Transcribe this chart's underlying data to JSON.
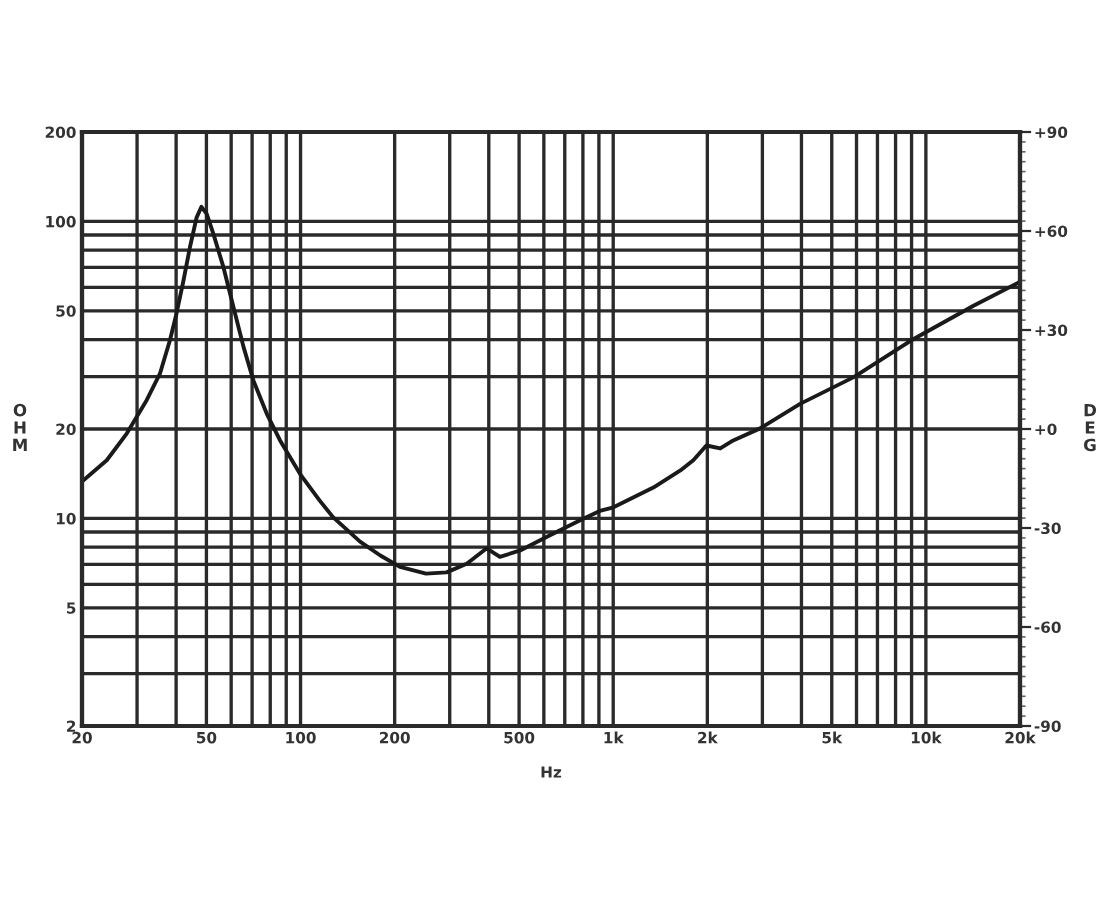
{
  "chart_data": {
    "type": "line",
    "xlabel": "Hz",
    "ylabel": "OHM",
    "y2label": "DEG",
    "log": "xy",
    "grid": true,
    "x": [
      20,
      24,
      27.8,
      32.2,
      35.5,
      38.2,
      40.1,
      42.2,
      44.3,
      46.5,
      48.2,
      50.1,
      52.6,
      56.7,
      61,
      65.7,
      70.7,
      78,
      86,
      99.7,
      115,
      127,
      155,
      180,
      208,
      252,
      293,
      340,
      394,
      434,
      504,
      612,
      676,
      784,
      906,
      1002,
      1344,
      1640,
      1804,
      1986,
      2200,
      2420,
      2950,
      3960,
      5880,
      9140,
      14200,
      20000
    ],
    "series": [
      {
        "color": "#1a1a1a",
        "values": [
          13.3,
          15.7,
          19.3,
          25,
          30.7,
          39.7,
          48.9,
          63,
          82,
          103,
          112,
          106,
          91,
          70,
          51.5,
          37.8,
          29.1,
          22.5,
          18.3,
          14.1,
          11.5,
          10.1,
          8.35,
          7.5,
          6.87,
          6.52,
          6.58,
          7.04,
          7.93,
          7.42,
          7.8,
          8.66,
          9.12,
          9.85,
          10.6,
          10.9,
          12.7,
          14.5,
          15.7,
          17.6,
          17.2,
          18.3,
          20.1,
          24.3,
          29.9,
          40.2,
          52,
          62.6
        ]
      }
    ],
    "xlim": [
      20,
      20000
    ],
    "xticks": [
      20,
      {
        "value": 30,
        "label": null
      },
      {
        "value": 40,
        "label": null
      },
      50,
      {
        "value": 60,
        "label": null
      },
      {
        "value": 70,
        "label": null
      },
      {
        "value": 80,
        "label": null
      },
      {
        "value": 90,
        "label": null
      },
      100,
      200,
      {
        "value": 300,
        "label": null
      },
      {
        "value": 400,
        "label": null
      },
      500,
      {
        "value": 600,
        "label": null
      },
      {
        "value": 700,
        "label": null
      },
      {
        "value": 800,
        "label": null
      },
      {
        "value": 900,
        "label": null
      },
      {
        "value": 1000,
        "label": "1k"
      },
      {
        "value": 2000,
        "label": "2k"
      },
      {
        "value": 3000,
        "label": null
      },
      {
        "value": 4000,
        "label": null
      },
      {
        "value": 5000,
        "label": "5k"
      },
      {
        "value": 6000,
        "label": null
      },
      {
        "value": 7000,
        "label": null
      },
      {
        "value": 8000,
        "label": null
      },
      {
        "value": 9000,
        "label": null
      },
      {
        "value": 10000,
        "label": "10k"
      },
      {
        "value": 20000,
        "label": "20k"
      }
    ],
    "ylim": [
      2,
      200
    ],
    "yticks": [
      2,
      {
        "value": 3,
        "label": null
      },
      {
        "value": 4,
        "label": null
      },
      5,
      {
        "value": 6,
        "label": null
      },
      {
        "value": 7,
        "label": null
      },
      {
        "value": 8,
        "label": null
      },
      {
        "value": 9,
        "label": null
      },
      10,
      20,
      {
        "value": 30,
        "label": null
      },
      {
        "value": 40,
        "label": null
      },
      50,
      {
        "value": 60,
        "label": null
      },
      {
        "value": 70,
        "label": null
      },
      {
        "value": 80,
        "label": null
      },
      {
        "value": 90,
        "label": null
      },
      100,
      200
    ],
    "y2lim": [
      -90,
      90
    ],
    "y2ticks": [
      {
        "value": -90,
        "label": "-90"
      },
      {
        "value": -87,
        "label": null
      },
      {
        "value": -84,
        "label": null
      },
      {
        "value": -81,
        "label": null
      },
      {
        "value": -78,
        "label": null
      },
      {
        "value": -75,
        "label": null
      },
      {
        "value": -72,
        "label": null
      },
      {
        "value": -69,
        "label": null
      },
      {
        "value": -66,
        "label": null
      },
      {
        "value": -63,
        "label": null
      },
      {
        "value": -60,
        "label": "-60"
      },
      {
        "value": -57,
        "label": null
      },
      {
        "value": -54,
        "label": null
      },
      {
        "value": -51,
        "label": null
      },
      {
        "value": -48,
        "label": null
      },
      {
        "value": -45,
        "label": null
      },
      {
        "value": -42,
        "label": null
      },
      {
        "value": -39,
        "label": null
      },
      {
        "value": -36,
        "label": null
      },
      {
        "value": -33,
        "label": null
      },
      {
        "value": -30,
        "label": "-30"
      },
      {
        "value": -27,
        "label": null
      },
      {
        "value": -24,
        "label": null
      },
      {
        "value": -21,
        "label": null
      },
      {
        "value": -18,
        "label": null
      },
      {
        "value": -15,
        "label": null
      },
      {
        "value": -12,
        "label": null
      },
      {
        "value": -9,
        "label": null
      },
      {
        "value": -6,
        "label": null
      },
      {
        "value": -3,
        "label": null
      },
      {
        "value": 0,
        "label": "+0"
      },
      {
        "value": 3,
        "label": null
      },
      {
        "value": 6,
        "label": null
      },
      {
        "value": 9,
        "label": null
      },
      {
        "value": 12,
        "label": null
      },
      {
        "value": 15,
        "label": null
      },
      {
        "value": 18,
        "label": null
      },
      {
        "value": 21,
        "label": null
      },
      {
        "value": 24,
        "label": null
      },
      {
        "value": 27,
        "label": null
      },
      {
        "value": 30,
        "label": "+30"
      },
      {
        "value": 33,
        "label": null
      },
      {
        "value": 36,
        "label": null
      },
      {
        "value": 39,
        "label": null
      },
      {
        "value": 42,
        "label": null
      },
      {
        "value": 45,
        "label": null
      },
      {
        "value": 48,
        "label": null
      },
      {
        "value": 51,
        "label": null
      },
      {
        "value": 54,
        "label": null
      },
      {
        "value": 57,
        "label": null
      },
      {
        "value": 60,
        "label": "+60"
      },
      {
        "value": 63,
        "label": null
      },
      {
        "value": 66,
        "label": null
      },
      {
        "value": 69,
        "label": null
      },
      {
        "value": 72,
        "label": null
      },
      {
        "value": 75,
        "label": null
      },
      {
        "value": 78,
        "label": null
      },
      {
        "value": 81,
        "label": null
      },
      {
        "value": 84,
        "label": null
      },
      {
        "value": 87,
        "label": null
      },
      {
        "value": 90,
        "label": "+90"
      }
    ]
  }
}
